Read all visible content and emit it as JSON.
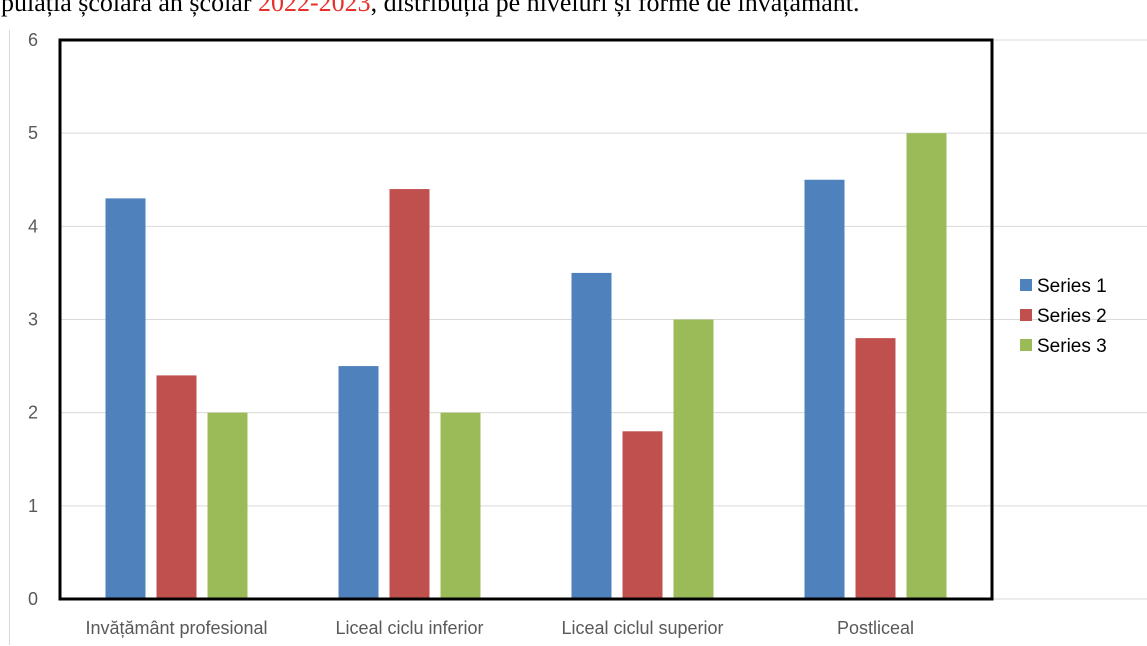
{
  "caption": {
    "before": "opulația școlară an școlar ",
    "highlight": "2022-2023",
    "after": ", distribuția pe niveluri și forme de învățământ."
  },
  "colors": {
    "series_1": "#4f81bd",
    "series_2": "#c0504d",
    "series_3": "#9bbb59",
    "gridline": "#d9d9d9",
    "plot_border": "#000000",
    "caption_highlight": "#e8302a"
  },
  "chart_data": {
    "type": "bar",
    "categories": [
      "Invățământ profesional",
      "Liceal ciclu inferior",
      "Liceal ciclul superior",
      "Postliceal"
    ],
    "series": [
      {
        "name": "Series 1",
        "values": [
          4.3,
          2.5,
          3.5,
          4.5
        ]
      },
      {
        "name": "Series 2",
        "values": [
          2.4,
          4.4,
          1.8,
          2.8
        ]
      },
      {
        "name": "Series 3",
        "values": [
          2.0,
          2.0,
          3.0,
          5.0
        ]
      }
    ],
    "ylim": [
      0,
      6
    ],
    "yticks": [
      0,
      1,
      2,
      3,
      4,
      5,
      6
    ],
    "grid": true,
    "legend_position": "right"
  }
}
